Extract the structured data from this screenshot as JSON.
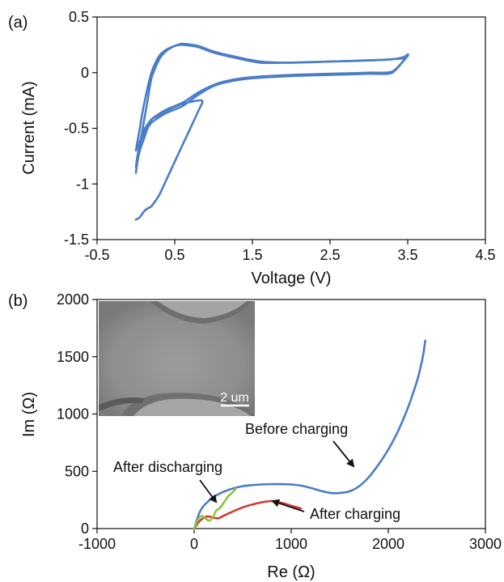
{
  "colors": {
    "cv": "#4a7cc8",
    "before": "#4a7cc8",
    "after_charging": "#d23a2e",
    "after_discharging": "#8cc63f"
  },
  "chart_data": [
    {
      "panel_label": "(a)",
      "type": "line",
      "xlabel": "Voltage (V)",
      "ylabel": "Current (mA)",
      "xlim": [
        -0.5,
        4.5
      ],
      "ylim": [
        -1.5,
        0.5
      ],
      "xticks": [
        "-0.5",
        "0.5",
        "1.5",
        "2.5",
        "3.5",
        "4.5"
      ],
      "yticks": [
        "0.5",
        "0",
        "-0.5",
        "-1",
        "-1.5"
      ],
      "series": [
        {
          "x": [
            0.0,
            0.05,
            0.1,
            0.15,
            0.2,
            0.3,
            0.4,
            0.5,
            0.6,
            0.8,
            1.0,
            1.3,
            1.6,
            2.0,
            2.5,
            3.0,
            3.3,
            3.45,
            3.5,
            3.3,
            3.0,
            2.5,
            2.0,
            1.5,
            1.2,
            1.0,
            0.8,
            0.6,
            0.4,
            0.3,
            0.2,
            0.1,
            0.05,
            0.02,
            0.0
          ],
          "y": [
            -0.85,
            -0.65,
            -0.45,
            -0.25,
            -0.05,
            0.12,
            0.2,
            0.24,
            0.25,
            0.23,
            0.18,
            0.13,
            0.09,
            0.09,
            0.1,
            0.11,
            0.12,
            0.14,
            0.16,
            0.0,
            -0.01,
            -0.02,
            -0.03,
            -0.05,
            -0.08,
            -0.12,
            -0.2,
            -0.3,
            -0.36,
            -0.4,
            -0.45,
            -0.55,
            -0.65,
            -0.75,
            -0.85
          ]
        },
        {
          "x": [
            0.0,
            0.05,
            0.1,
            0.2,
            0.3,
            0.4,
            0.5,
            0.6,
            0.8,
            1.0,
            1.3,
            1.6,
            2.0,
            2.5,
            3.0,
            3.3,
            3.45,
            3.5,
            3.3,
            3.0,
            2.5,
            2.0,
            1.5,
            1.2,
            1.0,
            0.8,
            0.6,
            0.4,
            0.3,
            0.2,
            0.1,
            0.05,
            0.0
          ],
          "y": [
            -0.7,
            -0.5,
            -0.3,
            0.0,
            0.15,
            0.21,
            0.24,
            0.26,
            0.24,
            0.19,
            0.14,
            0.1,
            0.09,
            0.1,
            0.11,
            0.12,
            0.13,
            0.15,
            0.01,
            0.0,
            -0.01,
            -0.02,
            -0.04,
            -0.07,
            -0.11,
            -0.18,
            -0.27,
            -0.33,
            -0.37,
            -0.42,
            -0.52,
            -0.62,
            -0.7
          ]
        },
        {
          "x": [
            0.0,
            0.05,
            0.1,
            0.15,
            0.2,
            0.3,
            0.4,
            0.5,
            0.6,
            0.8,
            0.85,
            0.6,
            0.4,
            0.3,
            0.2,
            0.15,
            0.1,
            0.05,
            0.02,
            0.0
          ],
          "y": [
            -1.32,
            -1.3,
            -1.25,
            -1.22,
            -1.2,
            -1.1,
            -0.95,
            -0.8,
            -0.65,
            -0.35,
            -0.25,
            -0.28,
            -0.34,
            -0.38,
            -0.42,
            -0.5,
            -0.6,
            -0.7,
            -0.8,
            -0.9
          ]
        }
      ]
    },
    {
      "panel_label": "(b)",
      "type": "line",
      "xlabel": "Re (Ω)",
      "ylabel": "Im (Ω)",
      "xlim": [
        -1000,
        3000
      ],
      "ylim": [
        0,
        2000
      ],
      "xticks": [
        "-1000",
        "0",
        "1000",
        "2000",
        "3000"
      ],
      "yticks": [
        "2000",
        "1500",
        "1000",
        "500",
        "0"
      ],
      "series": [
        {
          "name": "Before charging",
          "x": [
            0,
            50,
            100,
            200,
            300,
            400,
            500,
            600,
            700,
            800,
            900,
            1000,
            1100,
            1200,
            1300,
            1400,
            1500,
            1600,
            1700,
            1800,
            1900,
            2000,
            2100,
            2200,
            2250,
            2300,
            2330,
            2360,
            2380
          ],
          "y": [
            0,
            130,
            200,
            275,
            320,
            350,
            370,
            380,
            385,
            388,
            388,
            385,
            375,
            355,
            330,
            312,
            310,
            325,
            370,
            450,
            560,
            690,
            850,
            1050,
            1170,
            1300,
            1400,
            1520,
            1640
          ]
        },
        {
          "name": "After charging",
          "x": [
            0,
            50,
            100,
            150,
            200,
            250,
            300,
            400,
            500,
            600,
            700,
            800,
            900,
            1000,
            1100
          ],
          "y": [
            0,
            60,
            95,
            105,
            95,
            90,
            110,
            150,
            185,
            210,
            230,
            240,
            225,
            200,
            175
          ]
        },
        {
          "name": "After discharging",
          "x": [
            0,
            40,
            80,
            120,
            160,
            200,
            230,
            260,
            300,
            350,
            400,
            430
          ],
          "y": [
            0,
            80,
            110,
            85,
            70,
            110,
            160,
            175,
            220,
            280,
            320,
            350
          ]
        }
      ],
      "annotations": [
        "Before charging",
        "After charging",
        "After discharging"
      ],
      "inset": {
        "scale_bar": "2 um"
      }
    }
  ]
}
